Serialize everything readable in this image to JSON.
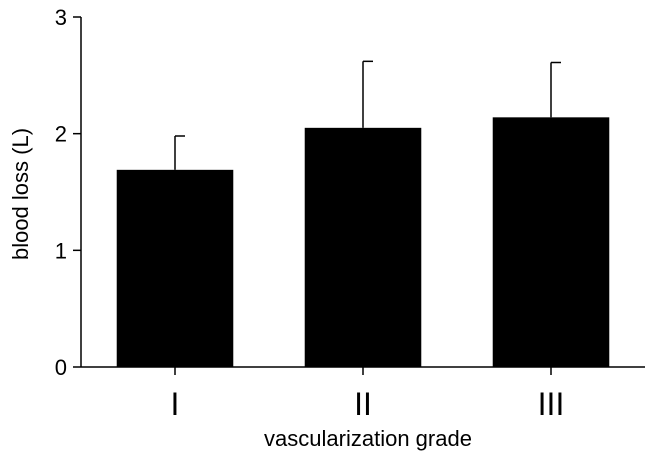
{
  "chart_data": {
    "type": "bar",
    "categories": [
      "I",
      "II",
      "III"
    ],
    "values": [
      1.69,
      2.05,
      2.14
    ],
    "error_plus": [
      0.29,
      0.57,
      0.47
    ],
    "xlabel": "vascularization grade",
    "ylabel": "blood loss (L)",
    "ylim": [
      0,
      3
    ],
    "yticks": [
      0,
      1,
      2,
      3
    ],
    "ytick_labels": [
      "0",
      "1",
      "2",
      "3"
    ],
    "bar_color": "#000000",
    "grid": false,
    "legend": "none"
  }
}
